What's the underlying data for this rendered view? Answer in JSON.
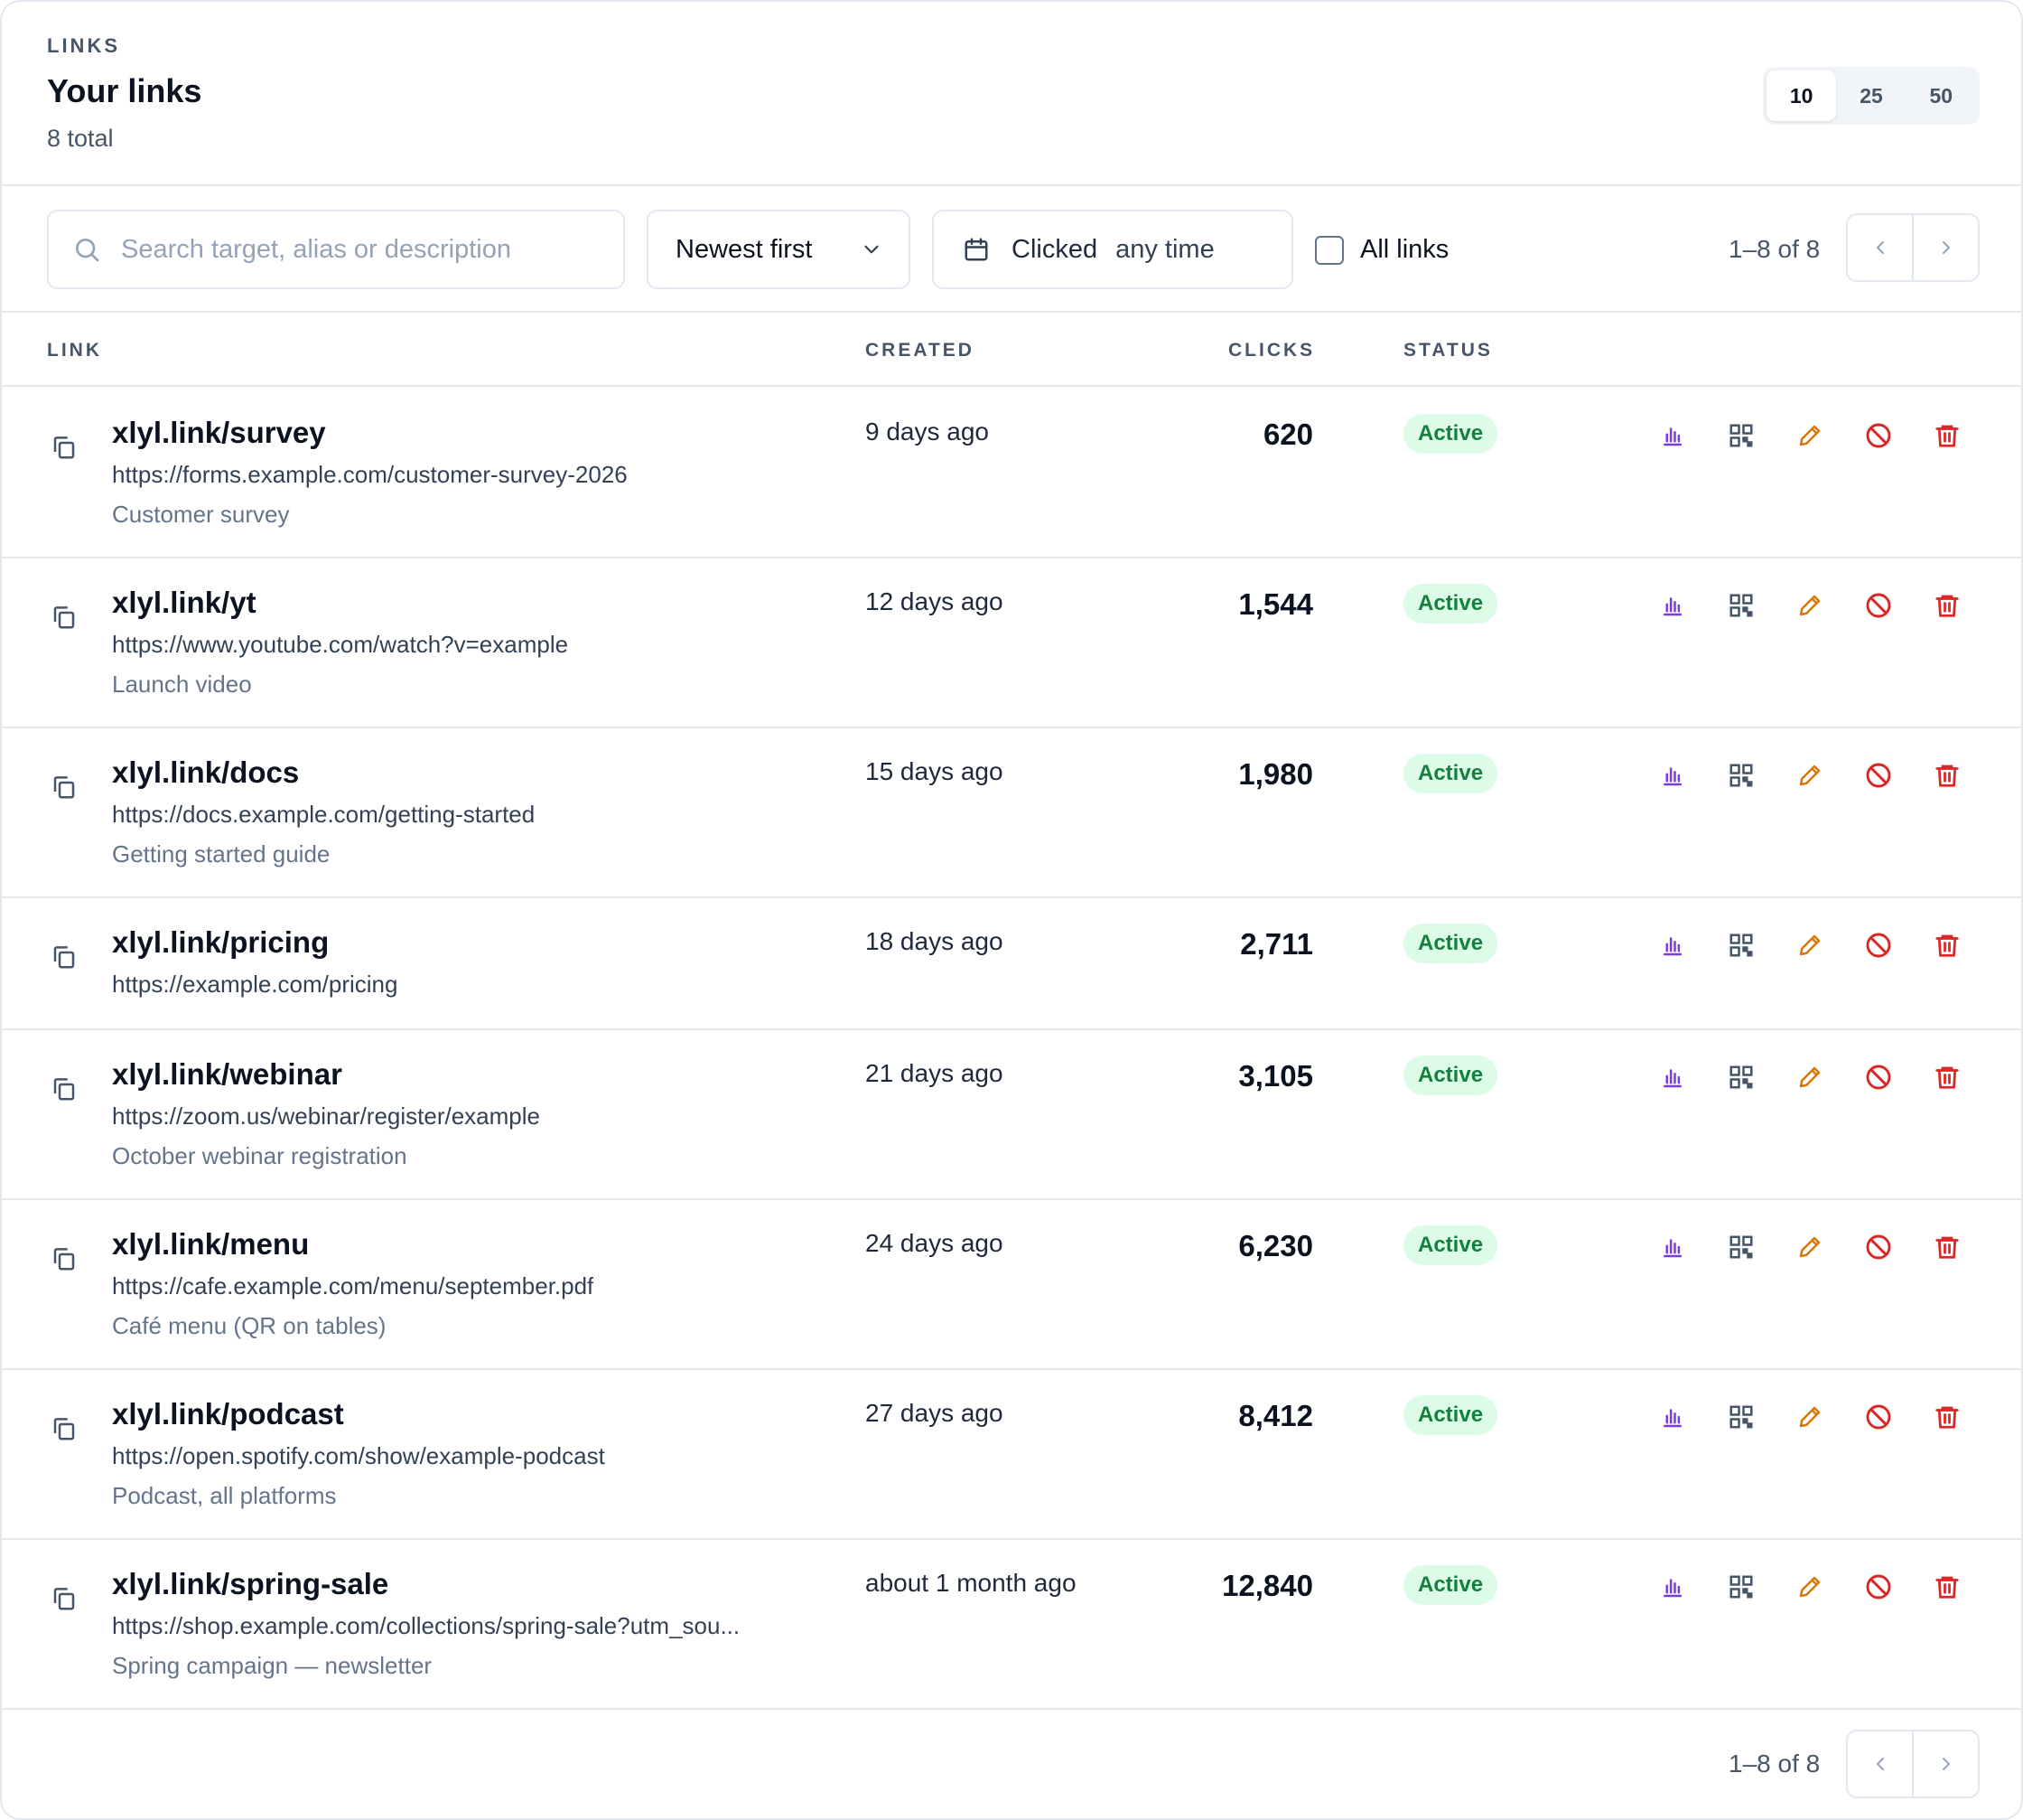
{
  "header": {
    "eyebrow": "LINKS",
    "title": "Your links",
    "subtitle": "8 total",
    "page_sizes": [
      "10",
      "25",
      "50"
    ],
    "selected_page_size": "10"
  },
  "toolbar": {
    "search_placeholder": "Search target, alias or description",
    "search_value": "",
    "sort_value": "Newest first",
    "date_label": "Clicked",
    "date_value": "any time",
    "all_links_label": "All links",
    "all_links_checked": false,
    "range": "1–8 of 8"
  },
  "table": {
    "columns": {
      "link": "LINK",
      "created": "CREATED",
      "clicks": "CLICKS",
      "status": "STATUS"
    },
    "rows": [
      {
        "alias": "xlyl.link/survey",
        "target": "https://forms.example.com/customer-survey-2026",
        "description": "Customer survey",
        "created": "9 days ago",
        "clicks": "620",
        "status": "Active"
      },
      {
        "alias": "xlyl.link/yt",
        "target": "https://www.youtube.com/watch?v=example",
        "description": "Launch video",
        "created": "12 days ago",
        "clicks": "1,544",
        "status": "Active"
      },
      {
        "alias": "xlyl.link/docs",
        "target": "https://docs.example.com/getting-started",
        "description": "Getting started guide",
        "created": "15 days ago",
        "clicks": "1,980",
        "status": "Active"
      },
      {
        "alias": "xlyl.link/pricing",
        "target": "https://example.com/pricing",
        "description": "",
        "created": "18 days ago",
        "clicks": "2,711",
        "status": "Active"
      },
      {
        "alias": "xlyl.link/webinar",
        "target": "https://zoom.us/webinar/register/example",
        "description": "October webinar registration",
        "created": "21 days ago",
        "clicks": "3,105",
        "status": "Active"
      },
      {
        "alias": "xlyl.link/menu",
        "target": "https://cafe.example.com/menu/september.pdf",
        "description": "Café menu (QR on tables)",
        "created": "24 days ago",
        "clicks": "6,230",
        "status": "Active"
      },
      {
        "alias": "xlyl.link/podcast",
        "target": "https://open.spotify.com/show/example-podcast",
        "description": "Podcast, all platforms",
        "created": "27 days ago",
        "clicks": "8,412",
        "status": "Active"
      },
      {
        "alias": "xlyl.link/spring-sale",
        "target": "https://shop.example.com/collections/spring-sale?utm_sou...",
        "description": "Spring campaign — newsletter",
        "created": "about 1 month ago",
        "clicks": "12,840",
        "status": "Active"
      }
    ],
    "row_actions": [
      "bar-chart-icon",
      "qr-code-icon",
      "pencil-icon",
      "disable-icon",
      "trash-icon"
    ]
  },
  "footer": {
    "range": "1–8 of 8"
  },
  "colors": {
    "stats": "#7c3aed",
    "qr": "#475569",
    "edit": "#d97706",
    "disable": "#dc2626",
    "delete": "#dc2626",
    "status_bg": "#dcfce7",
    "status_text": "#15803d"
  }
}
